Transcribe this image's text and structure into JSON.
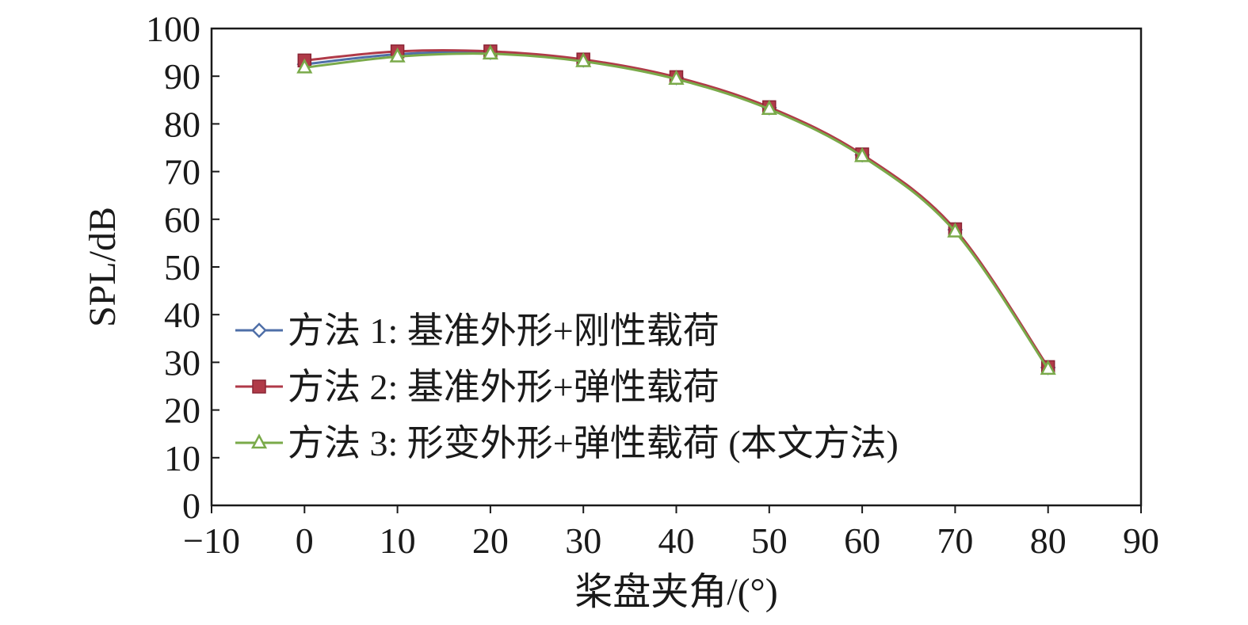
{
  "chart_data": {
    "type": "line",
    "xlabel": "桨盘夹角/(°)",
    "ylabel": "SPL/dB",
    "xlim": [
      -10,
      90
    ],
    "ylim": [
      0,
      100
    ],
    "xticks": [
      "−10",
      "0",
      "10",
      "20",
      "30",
      "40",
      "50",
      "60",
      "70",
      "80",
      "90"
    ],
    "xtick_values": [
      -10,
      0,
      10,
      20,
      30,
      40,
      50,
      60,
      70,
      80,
      90
    ],
    "yticks": [
      "0",
      "10",
      "20",
      "30",
      "40",
      "50",
      "60",
      "70",
      "80",
      "90",
      "100"
    ],
    "ytick_values": [
      0,
      10,
      20,
      30,
      40,
      50,
      60,
      70,
      80,
      90,
      100
    ],
    "grid": false,
    "legend_position": "lower-left",
    "x": [
      0,
      10,
      20,
      30,
      40,
      50,
      60,
      70,
      80
    ],
    "series": [
      {
        "name": "方法 1: 基准外形+刚性载荷",
        "values": [
          92.5,
          94.6,
          95.0,
          93.4,
          89.7,
          83.4,
          73.5,
          57.8,
          28.9
        ],
        "color": "#4f6fa8",
        "marker": "diamond-open"
      },
      {
        "name": "方法 2: 基准外形+弹性载荷",
        "values": [
          93.3,
          95.2,
          95.2,
          93.5,
          89.8,
          83.5,
          73.6,
          57.9,
          29.0
        ],
        "color": "#b03a48",
        "marker": "square-filled"
      },
      {
        "name": "方法 3: 形变外形+弹性载荷 (本文方法)",
        "values": [
          91.8,
          94.1,
          94.7,
          93.1,
          89.4,
          83.1,
          73.2,
          57.4,
          28.6
        ],
        "color": "#7aaa4a",
        "marker": "triangle-open"
      }
    ]
  }
}
